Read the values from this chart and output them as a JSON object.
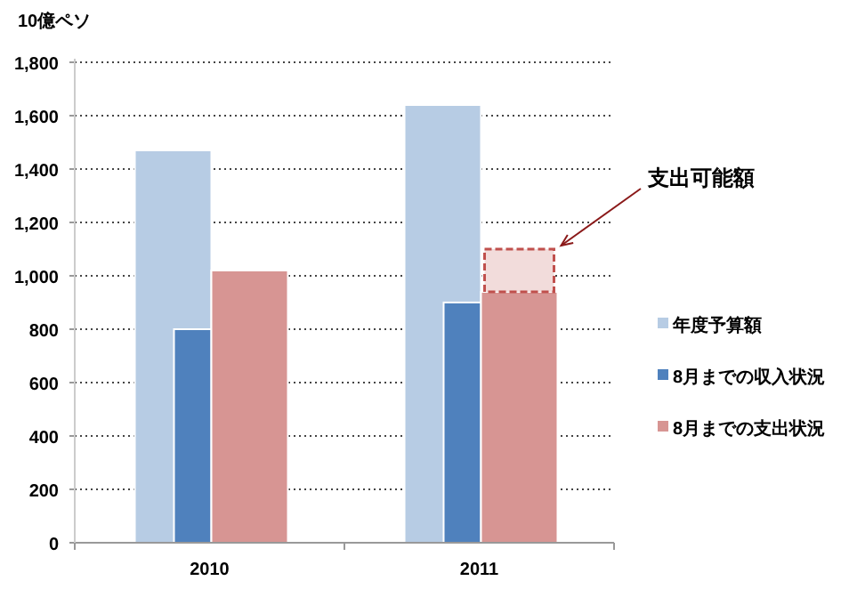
{
  "chart_data": {
    "type": "bar",
    "ylabel": "10億ペソ",
    "categories": [
      "2010",
      "2011"
    ],
    "series": [
      {
        "name": "年度予算額",
        "color": "#b7cce4",
        "values": [
          1470,
          1640
        ]
      },
      {
        "name": "8月までの収入状況",
        "color": "#4f81bd",
        "values": [
          800,
          900
        ]
      },
      {
        "name": "8月までの支出状況",
        "color": "#d79593",
        "values": [
          1020,
          940
        ]
      },
      {
        "name": "支出可能額",
        "color": "#f2dcdb",
        "values": [
          null,
          160
        ],
        "base": [
          null,
          940
        ],
        "line_style": "dashed"
      }
    ],
    "ylim": [
      0,
      1800
    ],
    "yticks": [
      0,
      {
        "value": 200,
        "label": "200"
      },
      {
        "value": 400,
        "label": "400"
      },
      {
        "value": 600,
        "label": "600"
      },
      {
        "value": 800,
        "label": "800"
      },
      {
        "value": 1000,
        "label": "1,000"
      },
      {
        "value": 1200,
        "label": "1,200"
      },
      {
        "value": 1400,
        "label": "1,400"
      },
      {
        "value": 1600,
        "label": "1,600"
      },
      {
        "value": 1800,
        "label": "1,800"
      }
    ],
    "grid": "y",
    "legend": "right"
  }
}
